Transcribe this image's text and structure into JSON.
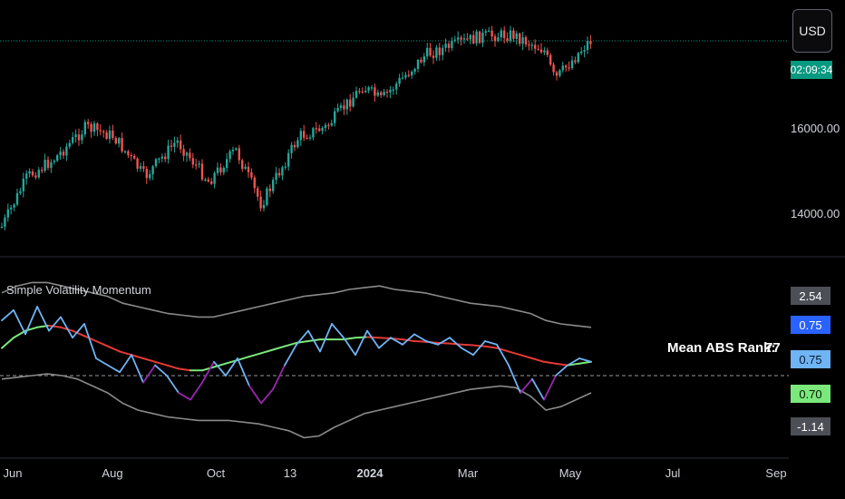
{
  "chart_data": [
    {
      "type": "candlestick",
      "currency": "USD",
      "last_price_label": "02:09:34",
      "y_ticks": [
        "16000.00",
        "14000.00"
      ],
      "y_tick_values": [
        16000,
        14000
      ],
      "x_ticks": [
        "Jun",
        "Aug",
        "Oct",
        "13",
        "2024",
        "Mar",
        "May",
        "Jul",
        "Sep"
      ],
      "colors": {
        "up": "#26a69a",
        "down": "#ef5350",
        "last_price": "#089981"
      }
    },
    {
      "type": "line",
      "title": "Simple Volatility Momentum",
      "series": [
        {
          "values": [
            1.6,
            1.9,
            1.2,
            2.0,
            1.3,
            1.7,
            1.1,
            1.5,
            0.5,
            0.3,
            0.1,
            0.6,
            -0.2,
            0.3,
            0.0,
            -0.5,
            -0.7,
            -0.2,
            0.4,
            0.0,
            0.5,
            -0.3,
            -0.8,
            -0.4,
            0.3,
            0.9,
            1.3,
            0.7,
            1.5,
            1.1,
            0.6,
            1.3,
            0.8,
            1.1,
            0.9,
            1.2,
            1.0,
            0.9,
            1.1,
            0.8,
            0.6,
            1.0,
            0.9,
            0.3,
            -0.5,
            -0.1,
            -0.7,
            0.0,
            0.3,
            0.5,
            0.4
          ],
          "color_up": "#6fb4f5",
          "color_down": "#9c27b0"
        },
        {
          "values": [
            0.8,
            1.1,
            1.3,
            1.4,
            1.45,
            1.4,
            1.3,
            1.15,
            1.0,
            0.85,
            0.7,
            0.6,
            0.5,
            0.4,
            0.3,
            0.2,
            0.15,
            0.15,
            0.25,
            0.35,
            0.45,
            0.55,
            0.65,
            0.75,
            0.85,
            0.95,
            1.0,
            1.05,
            1.05,
            1.05,
            1.1,
            1.12,
            1.1,
            1.08,
            1.05,
            1.0,
            0.98,
            0.95,
            0.93,
            0.9,
            0.88,
            0.85,
            0.8,
            0.7,
            0.6,
            0.5,
            0.4,
            0.35,
            0.3,
            0.35,
            0.4
          ],
          "color_up": "#7be87b",
          "color_down": "#e53935"
        },
        {
          "values": [
            2.4,
            2.6,
            2.7,
            2.7,
            2.6,
            2.5,
            2.4,
            2.3,
            2.1,
            2.0,
            1.9,
            1.8,
            1.75,
            1.7,
            1.7,
            1.8,
            1.9,
            2.0,
            2.1,
            2.2,
            2.3,
            2.35,
            2.4,
            2.5,
            2.55,
            2.6,
            2.5,
            2.45,
            2.4,
            2.3,
            2.2,
            2.1,
            2.05,
            2.0,
            1.9,
            1.8,
            1.6,
            1.5,
            1.45,
            1.4
          ],
          "color": "#8a8a8a"
        },
        {
          "values": [
            -0.1,
            -0.05,
            0.0,
            0.05,
            0.0,
            -0.1,
            -0.3,
            -0.5,
            -0.8,
            -1.0,
            -1.1,
            -1.2,
            -1.25,
            -1.3,
            -1.3,
            -1.3,
            -1.35,
            -1.4,
            -1.5,
            -1.6,
            -1.8,
            -1.75,
            -1.5,
            -1.3,
            -1.1,
            -1.0,
            -0.9,
            -0.8,
            -0.7,
            -0.6,
            -0.5,
            -0.4,
            -0.35,
            -0.3,
            -0.35,
            -0.6,
            -1.0,
            -0.9,
            -0.7,
            -0.5
          ],
          "color": "#8a8a8a"
        }
      ],
      "y_range": [
        -2.0,
        3.0
      ],
      "zero_line": 0,
      "badges": [
        {
          "text": "2.54",
          "value": 2.54,
          "bg": "#4d4f57",
          "fg": "#ffffff"
        },
        {
          "text": "0.75",
          "value": 0.75,
          "bg": "#2962ff",
          "fg": "#ffffff"
        },
        {
          "text": "0.75",
          "value": 0.75,
          "bg": "#6fb4f5",
          "fg": "#0b1a2b"
        },
        {
          "text": "0.70",
          "value": 0.7,
          "bg": "#7be87b",
          "fg": "#0b1a0b"
        },
        {
          "text": "-1.14",
          "value": -1.14,
          "bg": "#4d4f57",
          "fg": "#ffffff"
        }
      ],
      "rank_label": "Mean ABS Rank:",
      "rank_value": "77"
    }
  ]
}
